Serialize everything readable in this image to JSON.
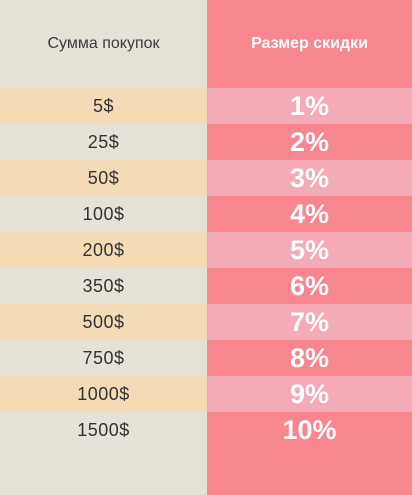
{
  "headers": {
    "amount": "Сумма покупок",
    "discount": "Размер скидки"
  },
  "rows": [
    {
      "amount": "5$",
      "discount": "1%"
    },
    {
      "amount": "25$",
      "discount": "2%"
    },
    {
      "amount": "50$",
      "discount": "3%"
    },
    {
      "amount": "100$",
      "discount": "4%"
    },
    {
      "amount": "200$",
      "discount": "5%"
    },
    {
      "amount": "350$",
      "discount": "6%"
    },
    {
      "amount": "500$",
      "discount": "7%"
    },
    {
      "amount": "750$",
      "discount": "8%"
    },
    {
      "amount": "1000$",
      "discount": "9%"
    },
    {
      "amount": "1500$",
      "discount": "10%"
    }
  ],
  "colors": {
    "left_bg": "#e6e2d8",
    "left_alt": "#f3dbb5",
    "right_bg": "#f7868f",
    "right_alt": "#f4abb7"
  }
}
